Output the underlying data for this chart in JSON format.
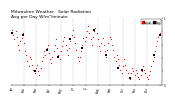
{
  "title": "Milwaukee Weather   Solar Radiation\nAvg per Day W/m²/minute",
  "title_fontsize": 3.2,
  "background_color": "#ffffff",
  "plot_bg_color": "#ffffff",
  "grid_color": "#bbbbbb",
  "data_red": [
    [
      1,
      0.82
    ],
    [
      2,
      0.75
    ],
    [
      3,
      0.68
    ],
    [
      4,
      0.8
    ],
    [
      5,
      0.72
    ],
    [
      6,
      0.6
    ],
    [
      7,
      0.52
    ],
    [
      8,
      0.65
    ],
    [
      9,
      0.7
    ],
    [
      10,
      0.78
    ],
    [
      11,
      0.62
    ],
    [
      12,
      0.5
    ],
    [
      13,
      0.45
    ],
    [
      14,
      0.35
    ],
    [
      15,
      0.28
    ],
    [
      16,
      0.42
    ],
    [
      17,
      0.38
    ],
    [
      18,
      0.3
    ],
    [
      19,
      0.22
    ],
    [
      20,
      0.18
    ],
    [
      21,
      0.25
    ],
    [
      22,
      0.3
    ],
    [
      23,
      0.2
    ],
    [
      24,
      0.15
    ],
    [
      25,
      0.25
    ],
    [
      26,
      0.35
    ],
    [
      27,
      0.42
    ],
    [
      28,
      0.5
    ],
    [
      29,
      0.45
    ],
    [
      30,
      0.55
    ],
    [
      31,
      0.6
    ],
    [
      32,
      0.48
    ],
    [
      33,
      0.38
    ],
    [
      34,
      0.32
    ],
    [
      35,
      0.42
    ],
    [
      36,
      0.5
    ],
    [
      37,
      0.6
    ],
    [
      38,
      0.68
    ],
    [
      39,
      0.55
    ],
    [
      40,
      0.45
    ],
    [
      41,
      0.38
    ],
    [
      42,
      0.5
    ],
    [
      43,
      0.58
    ],
    [
      44,
      0.65
    ],
    [
      45,
      0.72
    ],
    [
      46,
      0.6
    ],
    [
      47,
      0.52
    ],
    [
      48,
      0.45
    ],
    [
      49,
      0.55
    ],
    [
      50,
      0.65
    ],
    [
      51,
      0.75
    ],
    [
      52,
      0.82
    ],
    [
      53,
      0.72
    ],
    [
      54,
      0.62
    ],
    [
      55,
      0.52
    ],
    [
      56,
      0.42
    ],
    [
      57,
      0.35
    ],
    [
      58,
      0.42
    ],
    [
      59,
      0.5
    ],
    [
      60,
      0.6
    ],
    [
      61,
      0.7
    ],
    [
      62,
      0.65
    ],
    [
      63,
      0.72
    ],
    [
      64,
      0.8
    ],
    [
      65,
      0.88
    ],
    [
      66,
      0.78
    ],
    [
      67,
      0.68
    ],
    [
      68,
      0.6
    ],
    [
      69,
      0.72
    ],
    [
      70,
      0.8
    ],
    [
      71,
      0.85
    ],
    [
      72,
      0.78
    ],
    [
      73,
      0.68
    ],
    [
      74,
      0.58
    ],
    [
      75,
      0.5
    ],
    [
      76,
      0.62
    ],
    [
      77,
      0.7
    ],
    [
      78,
      0.6
    ],
    [
      79,
      0.5
    ],
    [
      80,
      0.42
    ],
    [
      81,
      0.52
    ],
    [
      82,
      0.62
    ],
    [
      83,
      0.72
    ],
    [
      84,
      0.68
    ],
    [
      85,
      0.6
    ],
    [
      86,
      0.52
    ],
    [
      87,
      0.42
    ],
    [
      88,
      0.35
    ],
    [
      89,
      0.45
    ],
    [
      90,
      0.38
    ],
    [
      91,
      0.3
    ],
    [
      92,
      0.22
    ],
    [
      93,
      0.18
    ],
    [
      94,
      0.28
    ],
    [
      95,
      0.38
    ],
    [
      96,
      0.3
    ],
    [
      97,
      0.22
    ],
    [
      98,
      0.18
    ],
    [
      99,
      0.12
    ],
    [
      100,
      0.08
    ],
    [
      101,
      0.18
    ],
    [
      102,
      0.25
    ],
    [
      103,
      0.2
    ],
    [
      104,
      0.15
    ],
    [
      105,
      0.22
    ],
    [
      106,
      0.18
    ],
    [
      107,
      0.12
    ],
    [
      108,
      0.08
    ],
    [
      109,
      0.15
    ],
    [
      110,
      0.2
    ],
    [
      111,
      0.28
    ],
    [
      112,
      0.22
    ],
    [
      113,
      0.18
    ],
    [
      114,
      0.12
    ],
    [
      115,
      0.08
    ],
    [
      116,
      0.15
    ],
    [
      117,
      0.2
    ],
    [
      118,
      0.28
    ],
    [
      119,
      0.35
    ],
    [
      120,
      0.42
    ],
    [
      121,
      0.5
    ],
    [
      122,
      0.58
    ],
    [
      123,
      0.65
    ],
    [
      124,
      0.72
    ],
    [
      125,
      0.78
    ]
  ],
  "data_black": [
    [
      1,
      0.78
    ],
    [
      10,
      0.75
    ],
    [
      20,
      0.2
    ],
    [
      30,
      0.52
    ],
    [
      40,
      0.42
    ],
    [
      50,
      0.68
    ],
    [
      60,
      0.55
    ],
    [
      70,
      0.82
    ],
    [
      80,
      0.45
    ],
    [
      90,
      0.25
    ],
    [
      100,
      0.1
    ],
    [
      110,
      0.22
    ],
    [
      120,
      0.45
    ],
    [
      125,
      0.75
    ]
  ],
  "month_ticks": [
    1,
    11,
    21,
    32,
    42,
    52,
    63,
    73,
    83,
    94,
    104,
    114,
    125
  ],
  "month_labels": [
    "Jan",
    "Feb",
    "Mar",
    "Apr",
    "May",
    "Jun",
    "Jul",
    "Aug",
    "Sep",
    "Oct",
    "Nov",
    "Dec",
    ""
  ],
  "vlines": [
    11,
    21,
    32,
    42,
    52,
    63,
    73,
    83,
    94,
    104,
    114
  ],
  "ylim": [
    0.0,
    1.0
  ],
  "yticks": [
    0.0,
    0.2,
    0.4,
    0.6,
    0.8,
    1.0
  ],
  "ytick_labels": [
    "0",
    "",
    "",
    "",
    "",
    "1"
  ],
  "red_color": "#ff0000",
  "black_color": "#000000",
  "marker_size": 0.8,
  "legend_red_label": "Actual",
  "legend_black_label": "Avg"
}
